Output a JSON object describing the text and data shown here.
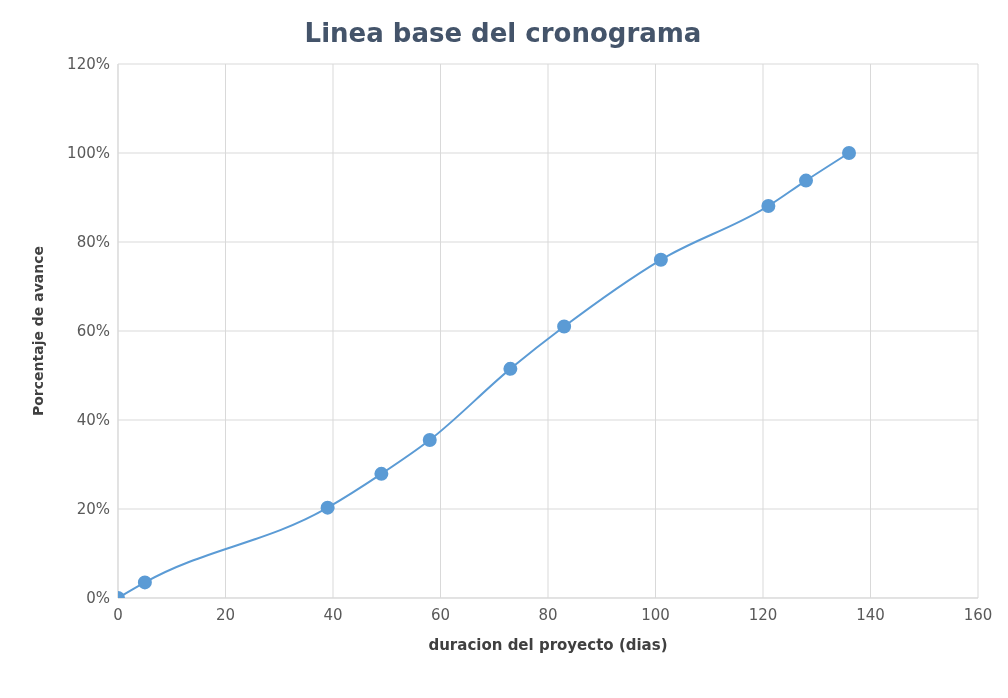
{
  "chart_data": {
    "type": "line",
    "title": "Linea base del cronograma",
    "xlabel": "duracion del proyecto (dias)",
    "ylabel": "Porcentaje de avance",
    "x": [
      0,
      5,
      39,
      49,
      58,
      73,
      83,
      101,
      121,
      128,
      136
    ],
    "series": [
      {
        "color": "#5b9bd5",
        "values": [
          0,
          3.5,
          20.3,
          27.9,
          35.5,
          51.5,
          61,
          76,
          88.1,
          93.8,
          100
        ]
      }
    ],
    "xlim": [
      0,
      160
    ],
    "xticks": [
      0,
      20,
      40,
      60,
      80,
      100,
      120,
      140,
      160
    ],
    "ylim": [
      0,
      120
    ],
    "yticks": [
      {
        "value": 0,
        "label": "0%"
      },
      {
        "value": 20,
        "label": "20%"
      },
      {
        "value": 40,
        "label": "40%"
      },
      {
        "value": 60,
        "label": "60%"
      },
      {
        "value": 80,
        "label": "80%"
      },
      {
        "value": 100,
        "label": "100%"
      },
      {
        "value": 120,
        "label": "120%"
      }
    ],
    "grid": true,
    "marker": "circle",
    "line_style": "solid",
    "legend": false
  }
}
